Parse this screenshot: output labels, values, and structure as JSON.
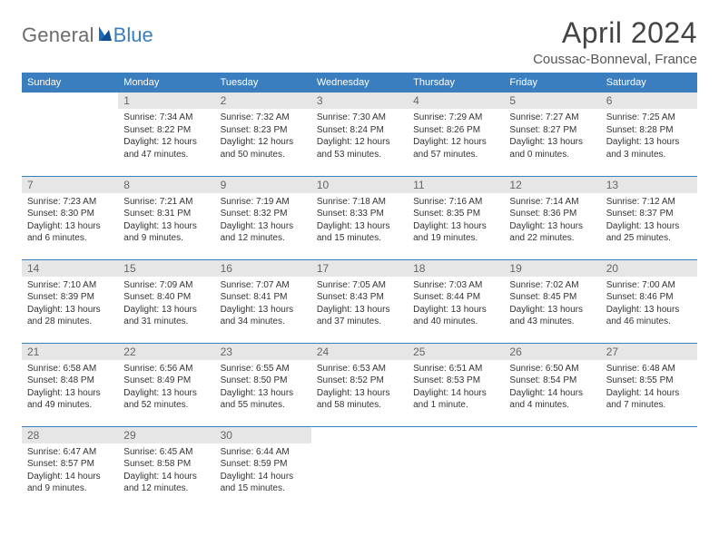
{
  "brand": {
    "word1": "General",
    "word2": "Blue"
  },
  "title": "April 2024",
  "location": "Coussac-Bonneval, France",
  "colors": {
    "header_bg": "#3a7ebf",
    "header_fg": "#ffffff",
    "daynum_bg": "#e6e6e6",
    "daynum_fg": "#666666",
    "row_divider": "#3a7ebf",
    "text": "#333333",
    "brand_gray": "#6b6b6b",
    "brand_blue": "#3a7ebf"
  },
  "daysOfWeek": [
    "Sunday",
    "Monday",
    "Tuesday",
    "Wednesday",
    "Thursday",
    "Friday",
    "Saturday"
  ],
  "weeks": [
    [
      {
        "blank": true
      },
      {
        "num": "1",
        "sunrise": "Sunrise: 7:34 AM",
        "sunset": "Sunset: 8:22 PM",
        "daylight": "Daylight: 12 hours and 47 minutes."
      },
      {
        "num": "2",
        "sunrise": "Sunrise: 7:32 AM",
        "sunset": "Sunset: 8:23 PM",
        "daylight": "Daylight: 12 hours and 50 minutes."
      },
      {
        "num": "3",
        "sunrise": "Sunrise: 7:30 AM",
        "sunset": "Sunset: 8:24 PM",
        "daylight": "Daylight: 12 hours and 53 minutes."
      },
      {
        "num": "4",
        "sunrise": "Sunrise: 7:29 AM",
        "sunset": "Sunset: 8:26 PM",
        "daylight": "Daylight: 12 hours and 57 minutes."
      },
      {
        "num": "5",
        "sunrise": "Sunrise: 7:27 AM",
        "sunset": "Sunset: 8:27 PM",
        "daylight": "Daylight: 13 hours and 0 minutes."
      },
      {
        "num": "6",
        "sunrise": "Sunrise: 7:25 AM",
        "sunset": "Sunset: 8:28 PM",
        "daylight": "Daylight: 13 hours and 3 minutes."
      }
    ],
    [
      {
        "num": "7",
        "sunrise": "Sunrise: 7:23 AM",
        "sunset": "Sunset: 8:30 PM",
        "daylight": "Daylight: 13 hours and 6 minutes."
      },
      {
        "num": "8",
        "sunrise": "Sunrise: 7:21 AM",
        "sunset": "Sunset: 8:31 PM",
        "daylight": "Daylight: 13 hours and 9 minutes."
      },
      {
        "num": "9",
        "sunrise": "Sunrise: 7:19 AM",
        "sunset": "Sunset: 8:32 PM",
        "daylight": "Daylight: 13 hours and 12 minutes."
      },
      {
        "num": "10",
        "sunrise": "Sunrise: 7:18 AM",
        "sunset": "Sunset: 8:33 PM",
        "daylight": "Daylight: 13 hours and 15 minutes."
      },
      {
        "num": "11",
        "sunrise": "Sunrise: 7:16 AM",
        "sunset": "Sunset: 8:35 PM",
        "daylight": "Daylight: 13 hours and 19 minutes."
      },
      {
        "num": "12",
        "sunrise": "Sunrise: 7:14 AM",
        "sunset": "Sunset: 8:36 PM",
        "daylight": "Daylight: 13 hours and 22 minutes."
      },
      {
        "num": "13",
        "sunrise": "Sunrise: 7:12 AM",
        "sunset": "Sunset: 8:37 PM",
        "daylight": "Daylight: 13 hours and 25 minutes."
      }
    ],
    [
      {
        "num": "14",
        "sunrise": "Sunrise: 7:10 AM",
        "sunset": "Sunset: 8:39 PM",
        "daylight": "Daylight: 13 hours and 28 minutes."
      },
      {
        "num": "15",
        "sunrise": "Sunrise: 7:09 AM",
        "sunset": "Sunset: 8:40 PM",
        "daylight": "Daylight: 13 hours and 31 minutes."
      },
      {
        "num": "16",
        "sunrise": "Sunrise: 7:07 AM",
        "sunset": "Sunset: 8:41 PM",
        "daylight": "Daylight: 13 hours and 34 minutes."
      },
      {
        "num": "17",
        "sunrise": "Sunrise: 7:05 AM",
        "sunset": "Sunset: 8:43 PM",
        "daylight": "Daylight: 13 hours and 37 minutes."
      },
      {
        "num": "18",
        "sunrise": "Sunrise: 7:03 AM",
        "sunset": "Sunset: 8:44 PM",
        "daylight": "Daylight: 13 hours and 40 minutes."
      },
      {
        "num": "19",
        "sunrise": "Sunrise: 7:02 AM",
        "sunset": "Sunset: 8:45 PM",
        "daylight": "Daylight: 13 hours and 43 minutes."
      },
      {
        "num": "20",
        "sunrise": "Sunrise: 7:00 AM",
        "sunset": "Sunset: 8:46 PM",
        "daylight": "Daylight: 13 hours and 46 minutes."
      }
    ],
    [
      {
        "num": "21",
        "sunrise": "Sunrise: 6:58 AM",
        "sunset": "Sunset: 8:48 PM",
        "daylight": "Daylight: 13 hours and 49 minutes."
      },
      {
        "num": "22",
        "sunrise": "Sunrise: 6:56 AM",
        "sunset": "Sunset: 8:49 PM",
        "daylight": "Daylight: 13 hours and 52 minutes."
      },
      {
        "num": "23",
        "sunrise": "Sunrise: 6:55 AM",
        "sunset": "Sunset: 8:50 PM",
        "daylight": "Daylight: 13 hours and 55 minutes."
      },
      {
        "num": "24",
        "sunrise": "Sunrise: 6:53 AM",
        "sunset": "Sunset: 8:52 PM",
        "daylight": "Daylight: 13 hours and 58 minutes."
      },
      {
        "num": "25",
        "sunrise": "Sunrise: 6:51 AM",
        "sunset": "Sunset: 8:53 PM",
        "daylight": "Daylight: 14 hours and 1 minute."
      },
      {
        "num": "26",
        "sunrise": "Sunrise: 6:50 AM",
        "sunset": "Sunset: 8:54 PM",
        "daylight": "Daylight: 14 hours and 4 minutes."
      },
      {
        "num": "27",
        "sunrise": "Sunrise: 6:48 AM",
        "sunset": "Sunset: 8:55 PM",
        "daylight": "Daylight: 14 hours and 7 minutes."
      }
    ],
    [
      {
        "num": "28",
        "sunrise": "Sunrise: 6:47 AM",
        "sunset": "Sunset: 8:57 PM",
        "daylight": "Daylight: 14 hours and 9 minutes."
      },
      {
        "num": "29",
        "sunrise": "Sunrise: 6:45 AM",
        "sunset": "Sunset: 8:58 PM",
        "daylight": "Daylight: 14 hours and 12 minutes."
      },
      {
        "num": "30",
        "sunrise": "Sunrise: 6:44 AM",
        "sunset": "Sunset: 8:59 PM",
        "daylight": "Daylight: 14 hours and 15 minutes."
      },
      {
        "blank": true
      },
      {
        "blank": true
      },
      {
        "blank": true
      },
      {
        "blank": true
      }
    ]
  ]
}
